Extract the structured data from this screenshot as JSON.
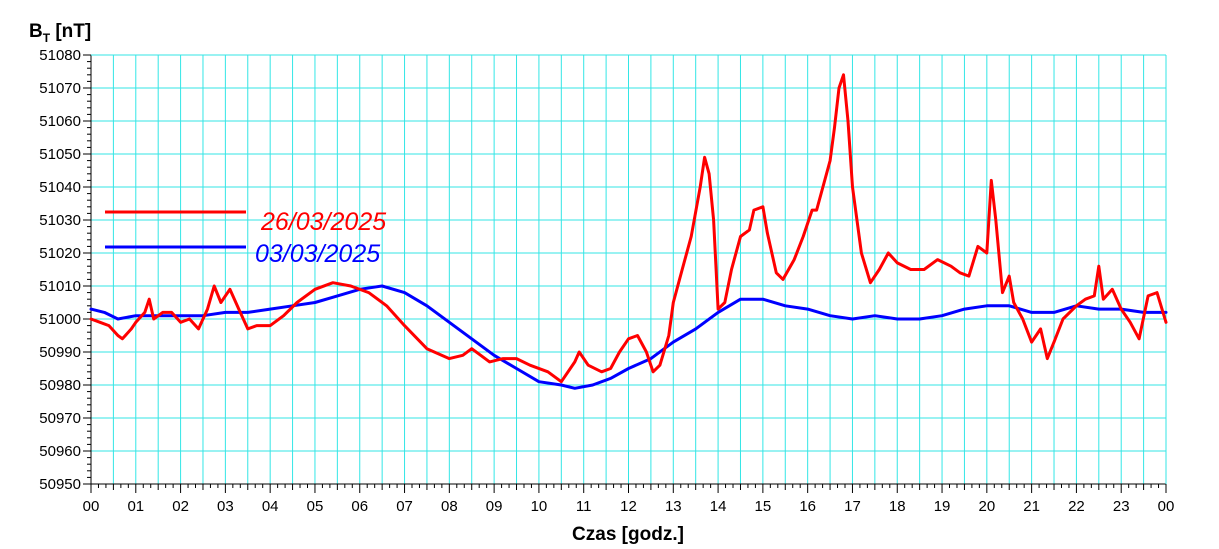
{
  "chart_data": {
    "type": "line",
    "ylabel_main": "B",
    "ylabel_sub": "T",
    "ylabel_unit": " [nT]",
    "xlabel": "Czas [godz.]",
    "ylim": [
      50950,
      51080
    ],
    "xlim": [
      0,
      24
    ],
    "grid": true,
    "legend_position": "left",
    "y_ticks": [
      "50950",
      "50960",
      "50970",
      "50980",
      "50990",
      "51000",
      "51010",
      "51020",
      "51030",
      "51040",
      "51050",
      "51060",
      "51070",
      "51080"
    ],
    "x_ticks": [
      "00",
      "01",
      "02",
      "03",
      "04",
      "05",
      "06",
      "07",
      "08",
      "09",
      "10",
      "11",
      "12",
      "13",
      "14",
      "15",
      "16",
      "17",
      "18",
      "19",
      "20",
      "21",
      "22",
      "23",
      "00"
    ],
    "series": [
      {
        "name": "26/03/2025",
        "color": "#ff0000",
        "points": [
          [
            0.0,
            51000
          ],
          [
            0.2,
            50999
          ],
          [
            0.4,
            50998
          ],
          [
            0.6,
            50995
          ],
          [
            0.7,
            50994
          ],
          [
            0.9,
            50997
          ],
          [
            1.0,
            50999
          ],
          [
            1.2,
            51002
          ],
          [
            1.3,
            51006
          ],
          [
            1.4,
            51000
          ],
          [
            1.6,
            51002
          ],
          [
            1.8,
            51002
          ],
          [
            2.0,
            50999
          ],
          [
            2.2,
            51000
          ],
          [
            2.4,
            50997
          ],
          [
            2.6,
            51003
          ],
          [
            2.75,
            51010
          ],
          [
            2.9,
            51005
          ],
          [
            3.1,
            51009
          ],
          [
            3.3,
            51003
          ],
          [
            3.5,
            50997
          ],
          [
            3.7,
            50998
          ],
          [
            4.0,
            50998
          ],
          [
            4.3,
            51001
          ],
          [
            4.6,
            51005
          ],
          [
            5.0,
            51009
          ],
          [
            5.4,
            51011
          ],
          [
            5.8,
            51010
          ],
          [
            6.2,
            51008
          ],
          [
            6.6,
            51004
          ],
          [
            7.0,
            50998
          ],
          [
            7.5,
            50991
          ],
          [
            8.0,
            50988
          ],
          [
            8.3,
            50989
          ],
          [
            8.5,
            50991
          ],
          [
            8.7,
            50989
          ],
          [
            8.9,
            50987
          ],
          [
            9.2,
            50988
          ],
          [
            9.5,
            50988
          ],
          [
            9.8,
            50986
          ],
          [
            10.2,
            50984
          ],
          [
            10.5,
            50981
          ],
          [
            10.8,
            50987
          ],
          [
            10.9,
            50990
          ],
          [
            11.1,
            50986
          ],
          [
            11.4,
            50984
          ],
          [
            11.6,
            50985
          ],
          [
            11.8,
            50990
          ],
          [
            12.0,
            50994
          ],
          [
            12.2,
            50995
          ],
          [
            12.4,
            50990
          ],
          [
            12.55,
            50984
          ],
          [
            12.7,
            50986
          ],
          [
            12.9,
            50995
          ],
          [
            13.0,
            51005
          ],
          [
            13.2,
            51015
          ],
          [
            13.4,
            51025
          ],
          [
            13.6,
            51040
          ],
          [
            13.7,
            51049
          ],
          [
            13.8,
            51044
          ],
          [
            13.9,
            51030
          ],
          [
            14.0,
            51003
          ],
          [
            14.15,
            51005
          ],
          [
            14.3,
            51015
          ],
          [
            14.5,
            51025
          ],
          [
            14.7,
            51027
          ],
          [
            14.8,
            51033
          ],
          [
            15.0,
            51034
          ],
          [
            15.1,
            51026
          ],
          [
            15.3,
            51014
          ],
          [
            15.45,
            51012
          ],
          [
            15.7,
            51018
          ],
          [
            15.9,
            51025
          ],
          [
            16.1,
            51033
          ],
          [
            16.2,
            51033
          ],
          [
            16.4,
            51043
          ],
          [
            16.5,
            51048
          ],
          [
            16.6,
            51058
          ],
          [
            16.7,
            51070
          ],
          [
            16.8,
            51074
          ],
          [
            16.9,
            51060
          ],
          [
            17.0,
            51040
          ],
          [
            17.2,
            51020
          ],
          [
            17.4,
            51011
          ],
          [
            17.6,
            51015
          ],
          [
            17.8,
            51020
          ],
          [
            18.0,
            51017
          ],
          [
            18.3,
            51015
          ],
          [
            18.6,
            51015
          ],
          [
            18.9,
            51018
          ],
          [
            19.2,
            51016
          ],
          [
            19.4,
            51014
          ],
          [
            19.6,
            51013
          ],
          [
            19.8,
            51022
          ],
          [
            20.0,
            51020
          ],
          [
            20.1,
            51042
          ],
          [
            20.2,
            51030
          ],
          [
            20.35,
            51008
          ],
          [
            20.5,
            51013
          ],
          [
            20.6,
            51005
          ],
          [
            20.8,
            51000
          ],
          [
            21.0,
            50993
          ],
          [
            21.2,
            50997
          ],
          [
            21.35,
            50988
          ],
          [
            21.5,
            50993
          ],
          [
            21.7,
            51000
          ],
          [
            22.0,
            51004
          ],
          [
            22.2,
            51006
          ],
          [
            22.4,
            51007
          ],
          [
            22.5,
            51016
          ],
          [
            22.6,
            51006
          ],
          [
            22.8,
            51009
          ],
          [
            23.0,
            51003
          ],
          [
            23.2,
            50999
          ],
          [
            23.4,
            50994
          ],
          [
            23.6,
            51007
          ],
          [
            23.8,
            51008
          ],
          [
            24.0,
            50999
          ]
        ]
      },
      {
        "name": "03/03/2025",
        "color": "#0000ff",
        "points": [
          [
            0.0,
            51003
          ],
          [
            0.3,
            51002
          ],
          [
            0.6,
            51000
          ],
          [
            1.0,
            51001
          ],
          [
            1.5,
            51001
          ],
          [
            2.0,
            51001
          ],
          [
            2.5,
            51001
          ],
          [
            3.0,
            51002
          ],
          [
            3.5,
            51002
          ],
          [
            4.0,
            51003
          ],
          [
            4.5,
            51004
          ],
          [
            5.0,
            51005
          ],
          [
            5.5,
            51007
          ],
          [
            6.0,
            51009
          ],
          [
            6.5,
            51010
          ],
          [
            7.0,
            51008
          ],
          [
            7.5,
            51004
          ],
          [
            8.0,
            50999
          ],
          [
            8.5,
            50994
          ],
          [
            9.0,
            50989
          ],
          [
            9.5,
            50985
          ],
          [
            10.0,
            50981
          ],
          [
            10.5,
            50980
          ],
          [
            10.8,
            50979
          ],
          [
            11.2,
            50980
          ],
          [
            11.6,
            50982
          ],
          [
            12.0,
            50985
          ],
          [
            12.5,
            50988
          ],
          [
            13.0,
            50993
          ],
          [
            13.5,
            50997
          ],
          [
            14.0,
            51002
          ],
          [
            14.5,
            51006
          ],
          [
            15.0,
            51006
          ],
          [
            15.5,
            51004
          ],
          [
            16.0,
            51003
          ],
          [
            16.5,
            51001
          ],
          [
            17.0,
            51000
          ],
          [
            17.5,
            51001
          ],
          [
            18.0,
            51000
          ],
          [
            18.5,
            51000
          ],
          [
            19.0,
            51001
          ],
          [
            19.5,
            51003
          ],
          [
            20.0,
            51004
          ],
          [
            20.5,
            51004
          ],
          [
            21.0,
            51002
          ],
          [
            21.5,
            51002
          ],
          [
            22.0,
            51004
          ],
          [
            22.5,
            51003
          ],
          [
            23.0,
            51003
          ],
          [
            23.5,
            51002
          ],
          [
            24.0,
            51002
          ]
        ]
      }
    ]
  }
}
